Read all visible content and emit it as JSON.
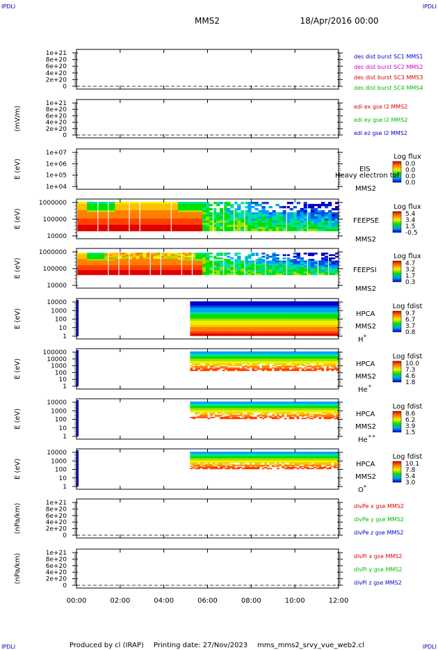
{
  "corner_label": "IPDLI",
  "header": {
    "title": "MMS2",
    "datetime": "18/Apr/2016 00:00"
  },
  "footer": {
    "produced": "Produced by cl (IRAP)",
    "printing": "Printing date: 27/Nov/2023",
    "file": "mms_mms2_srvy_vue_web2.cl"
  },
  "x_ticks": [
    "00:00",
    "02:00",
    "04:00",
    "06:00",
    "08:00",
    "10:00",
    "12:00"
  ],
  "x_range_hours": [
    0,
    12
  ],
  "colors": {
    "blue": "#0000cc",
    "magenta": "#cc00cc",
    "red": "#dd0000",
    "green": "#00bb00"
  },
  "chart_data": [
    {
      "type": "line",
      "id": "des",
      "yticks": [
        "1e+21",
        "8e+20",
        "6e+20",
        "4e+20",
        "2e+20",
        "0"
      ],
      "ylabel": "",
      "legend": [
        {
          "text": "des dist burst SC1 MMS1",
          "color": "#0000cc"
        },
        {
          "text": "des dist burst SC2 MMS2",
          "color": "#cc00cc"
        },
        {
          "text": "des dist burst SC3 MMS3",
          "color": "#dd0000"
        },
        {
          "text": "des dist burst SC4 MMS4",
          "color": "#00bb00"
        }
      ]
    },
    {
      "type": "line",
      "id": "edi",
      "yticks": [
        "1e+21",
        "8e+20",
        "6e+20",
        "4e+20",
        "2e+20",
        "0"
      ],
      "ylabel": "(mV/m)",
      "legend": [
        {
          "text": "edi ex gse l2 MMS2",
          "color": "#dd0000"
        },
        {
          "text": "edi ey gse l2 MMS2",
          "color": "#00bb00"
        },
        {
          "text": "edi ez gse l2 MMS2",
          "color": "#0000cc"
        }
      ]
    },
    {
      "type": "heatmap",
      "id": "eis",
      "yticks": [
        "1e+07",
        "1e+06",
        "1e+05",
        "1e+04"
      ],
      "ylabel": "E (eV)",
      "labels": [
        "EIS",
        "Heavy electron tof",
        "MMS2"
      ],
      "cb_title": "Log flux",
      "cb_values": [
        "0.0",
        "0.0",
        "0.0",
        "0.0"
      ]
    },
    {
      "type": "heatmap",
      "id": "feepse",
      "yticks": [
        "1000000",
        "100000",
        "10000"
      ],
      "ylabel": "E (eV)",
      "labels": [
        "FEEPSE",
        "MMS2"
      ],
      "cb_title": "Log flux",
      "cb_values": [
        "5.4",
        "3.4",
        "1.5",
        "-0.5"
      ]
    },
    {
      "type": "heatmap",
      "id": "feepsi",
      "yticks": [
        "1000000",
        "100000",
        "10000"
      ],
      "ylabel": "E (eV)",
      "labels": [
        "FEEPSI",
        "MMS2"
      ],
      "cb_title": "Log flux",
      "cb_values": [
        "4.7",
        "3.2",
        "1.7",
        "0.3"
      ]
    },
    {
      "type": "heatmap",
      "id": "hpca_h",
      "yticks": [
        "10000",
        "1000",
        "100",
        "10",
        "1"
      ],
      "ylabel": "E (eV)",
      "labels": [
        "HPCA",
        "MMS2"
      ],
      "species": "H",
      "species_sup": "+",
      "cb_title": "Log fdist",
      "cb_values": [
        "9.7",
        "6.7",
        "3.7",
        "0.8"
      ]
    },
    {
      "type": "heatmap",
      "id": "hpca_he1",
      "yticks": [
        "100000",
        "10000",
        "1000",
        "100",
        "10",
        "1"
      ],
      "ylabel": "E (eV)",
      "labels": [
        "HPCA",
        "MMS2"
      ],
      "species": "He",
      "species_sup": "+",
      "cb_title": "Log fdist",
      "cb_values": [
        "10.0",
        "7.3",
        "4.6",
        "1.8"
      ]
    },
    {
      "type": "heatmap",
      "id": "hpca_he2",
      "yticks": [
        "10000",
        "1000",
        "100",
        "10",
        "1"
      ],
      "ylabel": "E (eV)",
      "labels": [
        "HPCA",
        "MMS2"
      ],
      "species": "He",
      "species_sup": "++",
      "cb_title": "Log fdist",
      "cb_values": [
        "8.6",
        "6.2",
        "3.9",
        "1.5"
      ]
    },
    {
      "type": "heatmap",
      "id": "hpca_o",
      "yticks": [
        "10000",
        "1000",
        "100",
        "10",
        "1"
      ],
      "ylabel": "E (eV)",
      "labels": [
        "HPCA",
        "MMS2"
      ],
      "species": "O",
      "species_sup": "+",
      "cb_title": "Log fdist",
      "cb_values": [
        "10.1",
        "7.8",
        "5.4",
        "3.0"
      ]
    },
    {
      "type": "line",
      "id": "divpe",
      "yticks": [
        "1e+21",
        "8e+20",
        "6e+20",
        "4e+20",
        "2e+20",
        "0"
      ],
      "ylabel": "(nPa/km)",
      "legend": [
        {
          "text": "divPe x gse MMS2",
          "color": "#dd0000"
        },
        {
          "text": "divPe y gse MMS2",
          "color": "#00bb00"
        },
        {
          "text": "divPe z gse MMS2",
          "color": "#0000cc"
        }
      ]
    },
    {
      "type": "line",
      "id": "divpi",
      "yticks": [
        "1e+21",
        "8e+20",
        "6e+20",
        "4e+20",
        "2e+20",
        "0"
      ],
      "ylabel": "(nPa/km)",
      "legend": [
        {
          "text": "divPi x gse MMS2",
          "color": "#dd0000"
        },
        {
          "text": "divPi y gse MMS2",
          "color": "#00bb00"
        },
        {
          "text": "divPi z gse MMS2",
          "color": "#0000cc"
        }
      ]
    }
  ]
}
